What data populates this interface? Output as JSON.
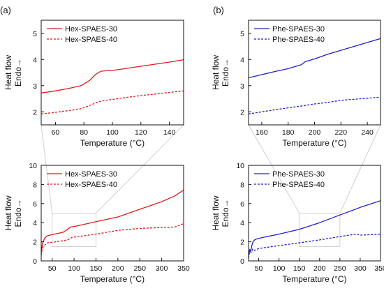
{
  "panel_labels": [
    "(a)",
    "(b)"
  ],
  "chart_data": [
    {
      "id": "a-top",
      "type": "line",
      "xlabel": "Temperature (°C)",
      "ylabel_parts": [
        "Heat flow",
        "Endo→"
      ],
      "xlim": [
        50,
        150
      ],
      "ylim": [
        1.5,
        5.5
      ],
      "xticks": [
        60,
        80,
        100,
        120,
        140
      ],
      "yticks": [
        2,
        3,
        4,
        5
      ],
      "legend_placement": "top-left",
      "series": [
        {
          "name": "Hex-SPAES-30",
          "color": "#e41a1c",
          "dash": "solid",
          "points": [
            [
              50,
              2.72
            ],
            [
              60,
              2.8
            ],
            [
              70,
              2.9
            ],
            [
              78,
              3.0
            ],
            [
              84,
              3.2
            ],
            [
              88,
              3.42
            ],
            [
              92,
              3.55
            ],
            [
              96,
              3.57
            ],
            [
              100,
              3.58
            ],
            [
              110,
              3.66
            ],
            [
              120,
              3.74
            ],
            [
              130,
              3.82
            ],
            [
              140,
              3.9
            ],
            [
              150,
              3.99
            ]
          ]
        },
        {
          "name": "Hex-SPAES-40",
          "color": "#e41a1c",
          "dash": "dashed",
          "points": [
            [
              50,
              1.92
            ],
            [
              60,
              1.98
            ],
            [
              70,
              2.05
            ],
            [
              78,
              2.12
            ],
            [
              84,
              2.24
            ],
            [
              90,
              2.38
            ],
            [
              95,
              2.44
            ],
            [
              100,
              2.47
            ],
            [
              110,
              2.55
            ],
            [
              120,
              2.62
            ],
            [
              130,
              2.68
            ],
            [
              140,
              2.74
            ],
            [
              150,
              2.8
            ]
          ]
        }
      ]
    },
    {
      "id": "b-top",
      "type": "line",
      "xlabel": "Temperature (°C)",
      "ylabel_parts": [
        "Heat flow",
        "Endo→"
      ],
      "xlim": [
        150,
        250
      ],
      "ylim": [
        1.5,
        5.5
      ],
      "xticks": [
        160,
        180,
        200,
        220,
        240
      ],
      "yticks": [
        2,
        3,
        4,
        5
      ],
      "legend_placement": "top-left",
      "series": [
        {
          "name": "Phe-SPAES-30",
          "color": "#1f1fd1",
          "dash": "solid",
          "points": [
            [
              150,
              3.3
            ],
            [
              160,
              3.42
            ],
            [
              170,
              3.54
            ],
            [
              180,
              3.65
            ],
            [
              190,
              3.8
            ],
            [
              193,
              3.92
            ],
            [
              200,
              4.02
            ],
            [
              210,
              4.2
            ],
            [
              220,
              4.35
            ],
            [
              230,
              4.5
            ],
            [
              240,
              4.65
            ],
            [
              250,
              4.8
            ]
          ]
        },
        {
          "name": "Phe-SPAES-40",
          "color": "#1f1fd1",
          "dash": "dashed",
          "points": [
            [
              150,
              1.92
            ],
            [
              160,
              2.0
            ],
            [
              170,
              2.08
            ],
            [
              180,
              2.15
            ],
            [
              190,
              2.22
            ],
            [
              200,
              2.3
            ],
            [
              210,
              2.36
            ],
            [
              215,
              2.4
            ],
            [
              220,
              2.44
            ],
            [
              230,
              2.48
            ],
            [
              240,
              2.52
            ],
            [
              250,
              2.56
            ]
          ]
        }
      ]
    },
    {
      "id": "a-bottom",
      "type": "line",
      "xlabel": "Temperature (°C)",
      "ylabel_parts": [
        "Heat flow",
        "Endo→"
      ],
      "xlim": [
        25,
        350
      ],
      "ylim": [
        0,
        10
      ],
      "xticks": [
        50,
        100,
        150,
        200,
        250,
        300,
        350
      ],
      "yticks": [
        0,
        2,
        4,
        6,
        8,
        10
      ],
      "legend_placement": "top-left",
      "series": [
        {
          "name": "Hex-SPAES-30",
          "color": "#e41a1c",
          "dash": "solid",
          "points": [
            [
              25,
              0.8
            ],
            [
              28,
              1.9
            ],
            [
              30,
              2.0
            ],
            [
              33,
              2.4
            ],
            [
              38,
              2.6
            ],
            [
              45,
              2.7
            ],
            [
              60,
              2.85
            ],
            [
              75,
              3.0
            ],
            [
              85,
              3.3
            ],
            [
              92,
              3.55
            ],
            [
              100,
              3.6
            ],
            [
              130,
              3.9
            ],
            [
              150,
              4.1
            ],
            [
              200,
              4.6
            ],
            [
              250,
              5.4
            ],
            [
              300,
              6.2
            ],
            [
              330,
              6.8
            ],
            [
              350,
              7.4
            ]
          ]
        },
        {
          "name": "Hex-SPAES-40",
          "color": "#e41a1c",
          "dash": "dashed",
          "points": [
            [
              25,
              0.6
            ],
            [
              28,
              1.4
            ],
            [
              32,
              1.6
            ],
            [
              40,
              1.9
            ],
            [
              60,
              2.0
            ],
            [
              85,
              2.2
            ],
            [
              95,
              2.45
            ],
            [
              100,
              2.5
            ],
            [
              150,
              2.8
            ],
            [
              200,
              3.2
            ],
            [
              250,
              3.4
            ],
            [
              300,
              3.5
            ],
            [
              330,
              3.55
            ],
            [
              350,
              3.9
            ]
          ]
        }
      ]
    },
    {
      "id": "b-bottom",
      "type": "line",
      "xlabel": "Temperature (°C)",
      "ylabel_parts": [
        "Heat flow",
        "Endo→"
      ],
      "xlim": [
        25,
        350
      ],
      "ylim": [
        0,
        10
      ],
      "xticks": [
        50,
        100,
        150,
        200,
        250,
        300,
        350
      ],
      "yticks": [
        0,
        2,
        4,
        6,
        8,
        10
      ],
      "legend_placement": "top-left",
      "series": [
        {
          "name": "Phe-SPAES-30",
          "color": "#1f1fd1",
          "dash": "solid",
          "points": [
            [
              25,
              0.5
            ],
            [
              28,
              1.2
            ],
            [
              30,
              1.0
            ],
            [
              33,
              1.6
            ],
            [
              36,
              2.0
            ],
            [
              40,
              2.2
            ],
            [
              45,
              2.3
            ],
            [
              60,
              2.45
            ],
            [
              100,
              2.8
            ],
            [
              150,
              3.3
            ],
            [
              200,
              4.0
            ],
            [
              250,
              4.8
            ],
            [
              300,
              5.6
            ],
            [
              350,
              6.3
            ]
          ]
        },
        {
          "name": "Phe-SPAES-40",
          "color": "#1f1fd1",
          "dash": "dashed",
          "points": [
            [
              25,
              0.3
            ],
            [
              28,
              1.0
            ],
            [
              31,
              0.9
            ],
            [
              33,
              0.95
            ],
            [
              35,
              1.25
            ],
            [
              40,
              1.1
            ],
            [
              50,
              1.3
            ],
            [
              100,
              1.6
            ],
            [
              150,
              1.9
            ],
            [
              200,
              2.2
            ],
            [
              250,
              2.55
            ],
            [
              290,
              2.8
            ],
            [
              300,
              2.7
            ],
            [
              330,
              2.75
            ],
            [
              350,
              2.8
            ]
          ]
        }
      ]
    }
  ],
  "zoom_boxes": [
    {
      "from": "a-bottom",
      "to": "a-top",
      "x": [
        50,
        150
      ],
      "y": [
        1.5,
        5.0
      ]
    },
    {
      "from": "b-bottom",
      "to": "b-top",
      "x": [
        150,
        250
      ],
      "y": [
        1.5,
        5.0
      ]
    }
  ]
}
